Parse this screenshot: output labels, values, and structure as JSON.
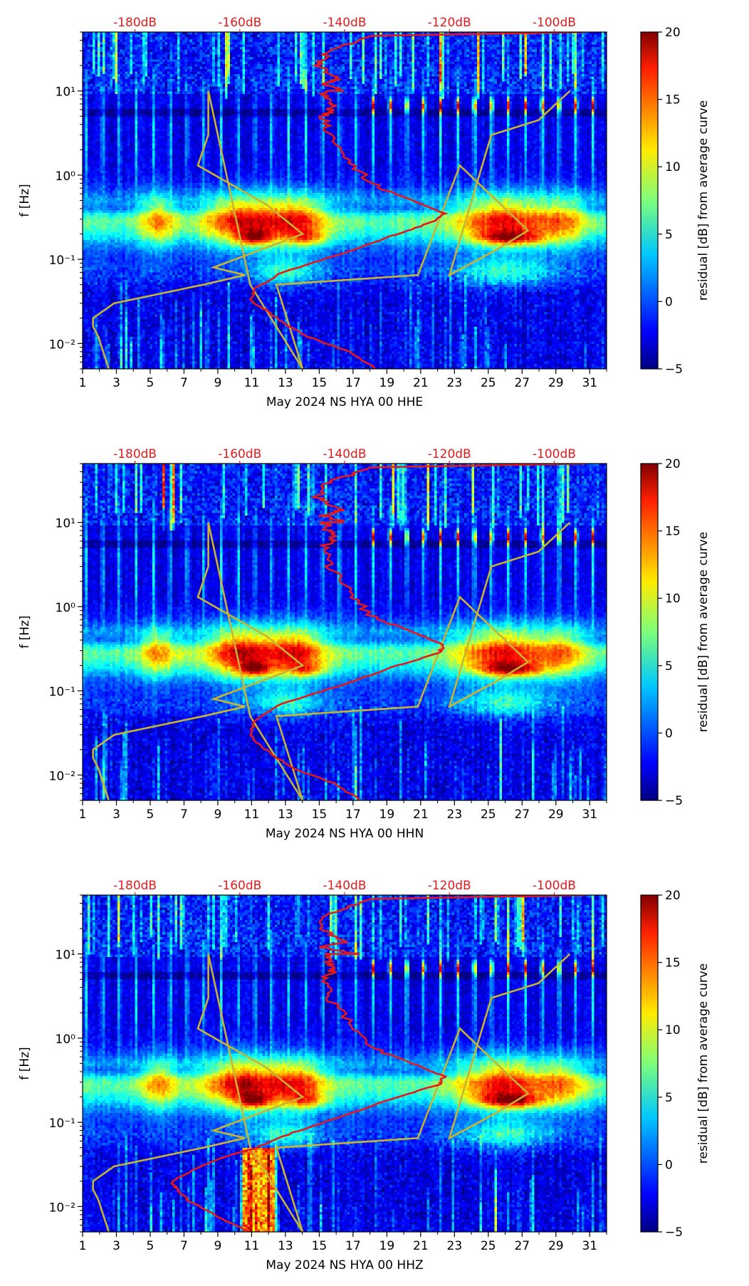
{
  "colorbar": {
    "label": "residual [dB] from average curve",
    "min": -5,
    "max": 20,
    "ticks": [
      -5,
      0,
      5,
      10,
      15,
      20
    ],
    "tick_labels": [
      "−5",
      "0",
      "5",
      "10",
      "15",
      "20"
    ]
  },
  "colors": {
    "psd_curve": "#e31a1c",
    "noise_model": "#c8b432",
    "top_axis_text": "#e31a1c"
  },
  "chart_data": [
    {
      "type": "heatmap",
      "title": "",
      "xlabel": "May 2024 NS HYA 00 HHE",
      "ylabel": "f [Hz]",
      "x_ticks": [
        "1",
        "3",
        "5",
        "7",
        "9",
        "11",
        "13",
        "15",
        "17",
        "19",
        "21",
        "23",
        "25",
        "27",
        "29",
        "31"
      ],
      "xlim": [
        1,
        32
      ],
      "y_ticks": [
        0.01,
        0.1,
        1,
        10
      ],
      "y_tick_labels": [
        "10⁻²",
        "10⁻¹",
        "10⁰",
        "10¹"
      ],
      "ylim_hz": [
        0.005,
        50
      ],
      "top_axis_labels": [
        "-180dB",
        "-160dB",
        "-140dB",
        "-120dB",
        "-100dB"
      ],
      "top_axis_db": [
        -180,
        -160,
        -140,
        -120,
        -100
      ],
      "top_axis_range_db": [
        -190,
        -90
      ],
      "psd_curve_db_by_freq": [
        [
          -134,
          0.005
        ],
        [
          -139,
          0.008
        ],
        [
          -147,
          0.012
        ],
        [
          -152,
          0.018
        ],
        [
          -155,
          0.025
        ],
        [
          -158,
          0.032
        ],
        [
          -157,
          0.045
        ],
        [
          -152,
          0.07
        ],
        [
          -140,
          0.12
        ],
        [
          -130,
          0.2
        ],
        [
          -123,
          0.28
        ],
        [
          -121,
          0.35
        ],
        [
          -127,
          0.5
        ],
        [
          -135,
          0.8
        ],
        [
          -139,
          1.5
        ],
        [
          -143,
          3
        ],
        [
          -144,
          5
        ],
        [
          -142,
          6.5
        ],
        [
          -143,
          8
        ],
        [
          -144,
          10
        ],
        [
          -140,
          10
        ],
        [
          -144,
          12
        ],
        [
          -141,
          14
        ],
        [
          -145,
          20
        ],
        [
          -143,
          30
        ],
        [
          -135,
          45
        ],
        [
          -94,
          50
        ]
      ],
      "noise_model_db_by_freq": [
        [
          -185,
          0.005
        ],
        [
          -187,
          0.012
        ],
        [
          -188,
          0.016
        ],
        [
          -188,
          0.02
        ],
        [
          -184,
          0.03
        ],
        [
          -167,
          0.05
        ],
        [
          -159,
          0.065
        ],
        [
          -165,
          0.08
        ],
        [
          -148,
          0.2
        ],
        [
          -155,
          0.45
        ],
        [
          -168,
          1.3
        ],
        [
          -166,
          3.0
        ],
        [
          -166,
          10
        ],
        [
          -158,
          0.05
        ],
        [
          -148,
          0.005
        ],
        [
          -153,
          0.05
        ],
        [
          -126,
          0.065
        ],
        [
          -118,
          1.3
        ],
        [
          -105,
          0.22
        ],
        [
          -111,
          0.13
        ],
        [
          -120,
          0.065
        ],
        [
          -112,
          3.0
        ],
        [
          -103,
          4.5
        ],
        [
          -97,
          10
        ]
      ],
      "seed": 11
    },
    {
      "type": "heatmap",
      "title": "",
      "xlabel": "May 2024 NS HYA 00 HHN",
      "ylabel": "f [Hz]",
      "x_ticks": [
        "1",
        "3",
        "5",
        "7",
        "9",
        "11",
        "13",
        "15",
        "17",
        "19",
        "21",
        "23",
        "25",
        "27",
        "29",
        "31"
      ],
      "xlim": [
        1,
        32
      ],
      "y_ticks": [
        0.01,
        0.1,
        1,
        10
      ],
      "y_tick_labels": [
        "10⁻²",
        "10⁻¹",
        "10⁰",
        "10¹"
      ],
      "ylim_hz": [
        0.005,
        50
      ],
      "top_axis_labels": [
        "-180dB",
        "-160dB",
        "-140dB",
        "-120dB",
        "-100dB"
      ],
      "top_axis_db": [
        -180,
        -160,
        -140,
        -120,
        -100
      ],
      "top_axis_range_db": [
        -190,
        -90
      ],
      "psd_curve_db_by_freq": [
        [
          -137,
          0.005
        ],
        [
          -142,
          0.008
        ],
        [
          -150,
          0.012
        ],
        [
          -154,
          0.018
        ],
        [
          -157,
          0.025
        ],
        [
          -158,
          0.032
        ],
        [
          -157,
          0.045
        ],
        [
          -152,
          0.07
        ],
        [
          -140,
          0.12
        ],
        [
          -130,
          0.2
        ],
        [
          -122,
          0.28
        ],
        [
          -121,
          0.35
        ],
        [
          -127,
          0.5
        ],
        [
          -135,
          0.8
        ],
        [
          -139,
          1.5
        ],
        [
          -143,
          3
        ],
        [
          -144,
          5
        ],
        [
          -142,
          6.5
        ],
        [
          -143,
          8
        ],
        [
          -144,
          10
        ],
        [
          -140,
          10
        ],
        [
          -144,
          12
        ],
        [
          -141,
          14
        ],
        [
          -145,
          20
        ],
        [
          -143,
          30
        ],
        [
          -135,
          45
        ],
        [
          -94,
          50
        ]
      ],
      "noise_model_db_by_freq": [
        [
          -185,
          0.005
        ],
        [
          -187,
          0.012
        ],
        [
          -188,
          0.016
        ],
        [
          -188,
          0.02
        ],
        [
          -184,
          0.03
        ],
        [
          -167,
          0.05
        ],
        [
          -159,
          0.065
        ],
        [
          -165,
          0.08
        ],
        [
          -148,
          0.2
        ],
        [
          -155,
          0.45
        ],
        [
          -168,
          1.3
        ],
        [
          -166,
          3.0
        ],
        [
          -166,
          10
        ],
        [
          -158,
          0.05
        ],
        [
          -148,
          0.005
        ],
        [
          -153,
          0.05
        ],
        [
          -126,
          0.065
        ],
        [
          -118,
          1.3
        ],
        [
          -105,
          0.22
        ],
        [
          -111,
          0.13
        ],
        [
          -120,
          0.065
        ],
        [
          -112,
          3.0
        ],
        [
          -103,
          4.5
        ],
        [
          -97,
          10
        ]
      ],
      "seed": 23
    },
    {
      "type": "heatmap",
      "title": "",
      "xlabel": "May 2024 NS HYA 00 HHZ",
      "ylabel": "f [Hz]",
      "x_ticks": [
        "1",
        "3",
        "5",
        "7",
        "9",
        "11",
        "13",
        "15",
        "17",
        "19",
        "21",
        "23",
        "25",
        "27",
        "29",
        "31"
      ],
      "xlim": [
        1,
        32
      ],
      "y_ticks": [
        0.01,
        0.1,
        1,
        10
      ],
      "y_tick_labels": [
        "10⁻²",
        "10⁻¹",
        "10⁰",
        "10¹"
      ],
      "ylim_hz": [
        0.005,
        50
      ],
      "top_axis_labels": [
        "-180dB",
        "-160dB",
        "-140dB",
        "-120dB",
        "-100dB"
      ],
      "top_axis_db": [
        -180,
        -160,
        -140,
        -120,
        -100
      ],
      "top_axis_range_db": [
        -190,
        -90
      ],
      "psd_curve_db_by_freq": [
        [
          -158,
          0.005
        ],
        [
          -165,
          0.008
        ],
        [
          -170,
          0.012
        ],
        [
          -172,
          0.016
        ],
        [
          -173,
          0.02
        ],
        [
          -170,
          0.025
        ],
        [
          -165,
          0.035
        ],
        [
          -157,
          0.05
        ],
        [
          -150,
          0.075
        ],
        [
          -140,
          0.12
        ],
        [
          -130,
          0.2
        ],
        [
          -122,
          0.28
        ],
        [
          -121,
          0.35
        ],
        [
          -127,
          0.5
        ],
        [
          -135,
          0.8
        ],
        [
          -139,
          1.5
        ],
        [
          -143,
          3
        ],
        [
          -144,
          5
        ],
        [
          -142,
          6.5
        ],
        [
          -143,
          8
        ],
        [
          -144,
          10
        ],
        [
          -138,
          10
        ],
        [
          -144,
          12
        ],
        [
          -140,
          14
        ],
        [
          -145,
          20
        ],
        [
          -143,
          30
        ],
        [
          -135,
          45
        ],
        [
          -94,
          50
        ]
      ],
      "noise_model_db_by_freq": [
        [
          -185,
          0.005
        ],
        [
          -187,
          0.012
        ],
        [
          -188,
          0.016
        ],
        [
          -188,
          0.02
        ],
        [
          -184,
          0.03
        ],
        [
          -167,
          0.05
        ],
        [
          -159,
          0.065
        ],
        [
          -165,
          0.08
        ],
        [
          -148,
          0.2
        ],
        [
          -155,
          0.45
        ],
        [
          -168,
          1.3
        ],
        [
          -166,
          3.0
        ],
        [
          -166,
          10
        ],
        [
          -158,
          0.05
        ],
        [
          -148,
          0.005
        ],
        [
          -153,
          0.05
        ],
        [
          -126,
          0.065
        ],
        [
          -118,
          1.3
        ],
        [
          -105,
          0.22
        ],
        [
          -111,
          0.13
        ],
        [
          -120,
          0.065
        ],
        [
          -112,
          3.0
        ],
        [
          -103,
          4.5
        ],
        [
          -97,
          10
        ]
      ],
      "seed": 37,
      "low_freq_burst_days": [
        10.5,
        12.3
      ]
    }
  ]
}
